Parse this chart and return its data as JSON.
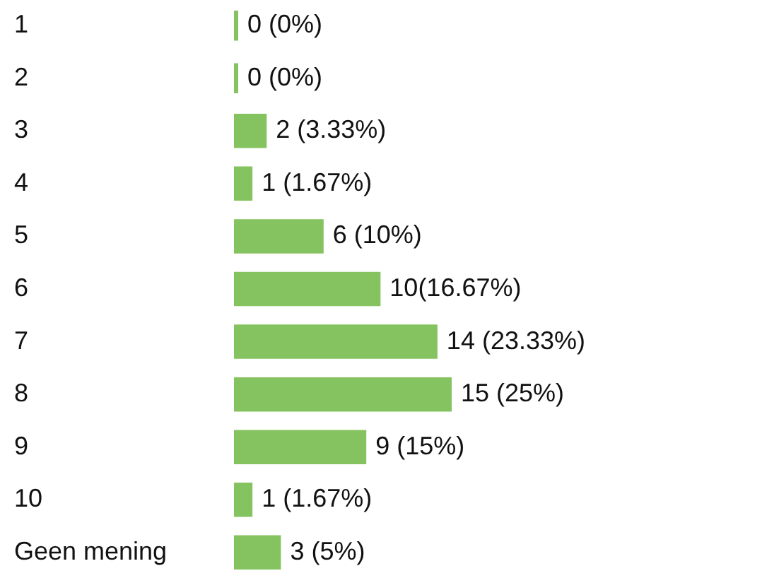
{
  "chart_data": {
    "type": "bar",
    "orientation": "horizontal",
    "categories": [
      "1",
      "2",
      "3",
      "4",
      "5",
      "6",
      "7",
      "8",
      "9",
      "10",
      "Geen mening"
    ],
    "values": [
      0,
      0,
      2,
      1,
      6,
      10,
      14,
      15,
      9,
      1,
      3
    ],
    "value_labels": [
      "0 (0%)",
      "0 (0%)",
      "2 (3.33%)",
      "1 (1.67%)",
      "6 (10%)",
      "10(16.67%)",
      "14 (23.33%)",
      "15 (25%)",
      "9 (15%)",
      "1 (1.67%)",
      "3 (5%)"
    ],
    "color": "#84c35f"
  }
}
